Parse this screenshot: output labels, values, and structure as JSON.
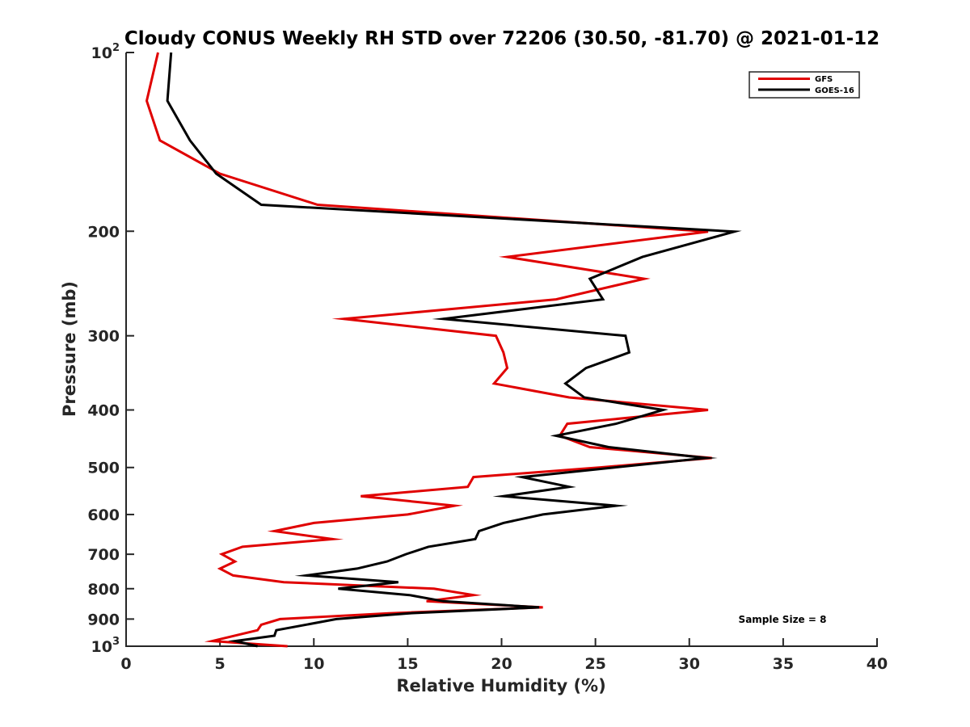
{
  "chart_data": {
    "type": "line",
    "title": "Cloudy CONUS Weekly RH STD over 72206 (30.50, -81.70) @ 2021-01-12",
    "xlabel": "Relative Humidity (%)",
    "ylabel": "Pressure (mb)",
    "xlim": [
      0,
      40
    ],
    "ylim": [
      100,
      1000
    ],
    "yscale": "log",
    "yreversed": true,
    "grid": false,
    "x_ticks": [
      0,
      5,
      10,
      15,
      20,
      25,
      30,
      35,
      40
    ],
    "x_tick_labels": [
      "0",
      "5",
      "10",
      "15",
      "20",
      "25",
      "30",
      "35",
      "40"
    ],
    "y_ticks": [
      100,
      200,
      300,
      400,
      500,
      600,
      700,
      800,
      900,
      1000
    ],
    "y_tick_labels": [
      {
        "base": "10",
        "sup": "2"
      },
      {
        "base": "200",
        "sup": ""
      },
      {
        "base": "300",
        "sup": ""
      },
      {
        "base": "400",
        "sup": ""
      },
      {
        "base": "500",
        "sup": ""
      },
      {
        "base": "600",
        "sup": ""
      },
      {
        "base": "700",
        "sup": ""
      },
      {
        "base": "800",
        "sup": ""
      },
      {
        "base": "900",
        "sup": ""
      },
      {
        "base": "10",
        "sup": "3"
      }
    ],
    "legend": {
      "placement": "top-right",
      "entries": [
        "GFS",
        "GOES-16"
      ]
    },
    "annotations": [
      "Sample Size = 8"
    ],
    "series": [
      {
        "name": "GFS",
        "color": "#e00000",
        "points": [
          [
            1.7,
            100
          ],
          [
            1.1,
            120.6
          ],
          [
            1.8,
            140.6
          ],
          [
            5.0,
            160
          ],
          [
            10.2,
            180.5
          ],
          [
            31.0,
            200.3
          ],
          [
            20.3,
            221
          ],
          [
            27.6,
            240.5
          ],
          [
            22.9,
            260.5
          ],
          [
            11.6,
            281
          ],
          [
            19.7,
            300
          ],
          [
            20.1,
            320
          ],
          [
            20.3,
            340
          ],
          [
            19.6,
            361
          ],
          [
            23.6,
            381
          ],
          [
            31.0,
            400
          ],
          [
            23.5,
            422
          ],
          [
            23.1,
            442
          ],
          [
            24.7,
            462
          ],
          [
            31.2,
            482
          ],
          [
            25.2,
            500
          ],
          [
            18.5,
            519
          ],
          [
            18.2,
            539
          ],
          [
            12.5,
            559
          ],
          [
            17.5,
            580
          ],
          [
            15.0,
            600
          ],
          [
            10.0,
            620
          ],
          [
            7.9,
            640
          ],
          [
            11.0,
            660
          ],
          [
            6.2,
            680
          ],
          [
            5.1,
            700
          ],
          [
            5.8,
            720
          ],
          [
            5.0,
            740
          ],
          [
            5.7,
            760
          ],
          [
            8.4,
            780
          ],
          [
            16.4,
            800
          ],
          [
            18.5,
            820
          ],
          [
            16.0,
            840
          ],
          [
            22.2,
            860
          ],
          [
            14.0,
            880
          ],
          [
            8.2,
            900
          ],
          [
            7.2,
            920
          ],
          [
            7.0,
            940
          ],
          [
            4.6,
            980
          ],
          [
            8.6,
            1000
          ]
        ]
      },
      {
        "name": "GOES-16",
        "color": "#000000",
        "points": [
          [
            2.4,
            100
          ],
          [
            2.2,
            120.6
          ],
          [
            3.4,
            140.6
          ],
          [
            4.8,
            160
          ],
          [
            7.2,
            180.5
          ],
          [
            32.4,
            200.3
          ],
          [
            27.5,
            221
          ],
          [
            24.7,
            240.5
          ],
          [
            25.4,
            260.5
          ],
          [
            16.9,
            281
          ],
          [
            26.6,
            300
          ],
          [
            26.8,
            320
          ],
          [
            24.5,
            340
          ],
          [
            23.4,
            361
          ],
          [
            24.4,
            381
          ],
          [
            28.6,
            400
          ],
          [
            26.1,
            422
          ],
          [
            22.9,
            442
          ],
          [
            25.7,
            462
          ],
          [
            30.9,
            482
          ],
          [
            26.0,
            500
          ],
          [
            21.1,
            519
          ],
          [
            23.6,
            539
          ],
          [
            20.1,
            559
          ],
          [
            26.1,
            580
          ],
          [
            22.2,
            600
          ],
          [
            20.1,
            620
          ],
          [
            18.8,
            640
          ],
          [
            18.6,
            660
          ],
          [
            16.1,
            680
          ],
          [
            14.9,
            700
          ],
          [
            13.9,
            720
          ],
          [
            12.3,
            740
          ],
          [
            9.6,
            760
          ],
          [
            14.5,
            780
          ],
          [
            11.3,
            800
          ],
          [
            15.1,
            820
          ],
          [
            16.9,
            840
          ],
          [
            22.0,
            860
          ],
          [
            15.1,
            880
          ],
          [
            11.2,
            900
          ],
          [
            8.0,
            940
          ],
          [
            7.9,
            960
          ],
          [
            5.8,
            980
          ],
          [
            7.0,
            1000
          ]
        ]
      }
    ]
  }
}
